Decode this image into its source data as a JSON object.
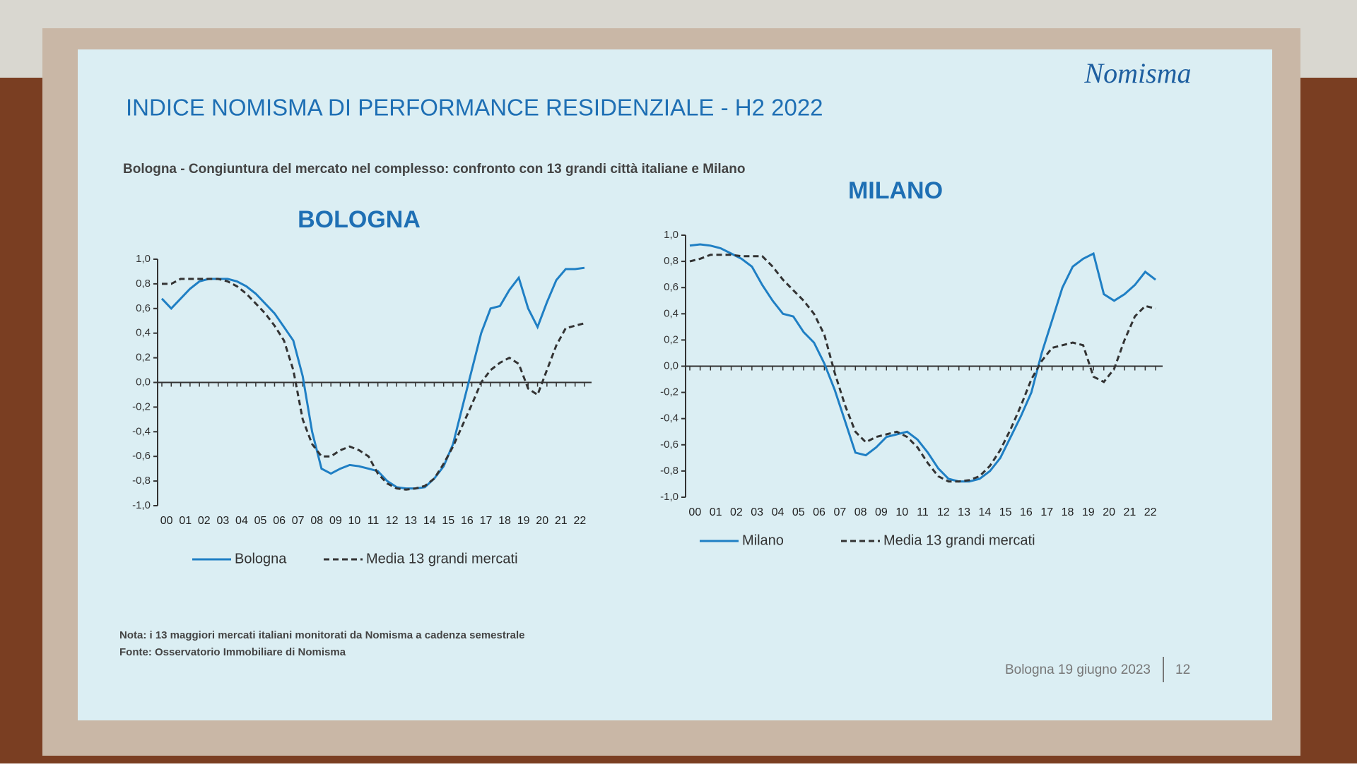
{
  "slide": {
    "title": "INDICE NOMISMA DI PERFORMANCE RESIDENZIALE - H2 2022",
    "subtitle": "Bologna - Congiuntura del mercato nel complesso: confronto con 13 grandi città italiane e Milano",
    "logo": "Nomisma",
    "notes": [
      "Nota: i 13 maggiori mercati italiani monitorati da Nomisma a cadenza semestrale",
      "Fonte: Osservatorio Immobiliare di Nomisma"
    ],
    "footer": {
      "date": "Bologna 19 giugno 2023",
      "page": "12"
    }
  },
  "chart_data": [
    {
      "type": "line",
      "title": "BOLOGNA",
      "categories": [
        "00",
        null,
        "01",
        null,
        "02",
        null,
        "03",
        null,
        "04",
        null,
        "05",
        null,
        "06",
        null,
        "07",
        null,
        "08",
        null,
        "09",
        null,
        "10",
        null,
        "11",
        null,
        "12",
        null,
        "13",
        null,
        "14",
        null,
        "15",
        null,
        "16",
        null,
        "17",
        null,
        "18",
        null,
        "19",
        null,
        "20",
        null,
        "21",
        null,
        "22",
        null
      ],
      "ylim": [
        -1,
        1
      ],
      "yticks": [
        {
          "value": -1,
          "label": "-1,0"
        },
        {
          "value": -0.8,
          "label": "-0,8"
        },
        {
          "value": -0.6,
          "label": "-0,6"
        },
        {
          "value": -0.4,
          "label": "-0,4"
        },
        {
          "value": -0.2,
          "label": "-0,2"
        },
        {
          "value": 0,
          "label": "0,0"
        },
        {
          "value": 0.2,
          "label": "0,2"
        },
        {
          "value": 0.4,
          "label": "0,4"
        },
        {
          "value": 0.6,
          "label": "0,6"
        },
        {
          "value": 0.8,
          "label": "0,8"
        },
        {
          "value": 1,
          "label": "1,0"
        }
      ],
      "series": [
        {
          "name": "Bologna",
          "color": "#1f7fc4",
          "line_style": "solid",
          "values": [
            0.68,
            0.6,
            0.68,
            0.76,
            0.82,
            0.84,
            0.84,
            0.84,
            0.82,
            0.78,
            0.72,
            0.64,
            0.56,
            0.45,
            0.34,
            0.05,
            -0.4,
            -0.7,
            -0.74,
            -0.7,
            -0.67,
            -0.68,
            -0.7,
            -0.72,
            -0.8,
            -0.85,
            -0.86,
            -0.86,
            -0.85,
            -0.78,
            -0.68,
            -0.5,
            -0.2,
            0.1,
            0.4,
            0.6,
            0.62,
            0.75,
            0.85,
            0.6,
            0.45,
            0.65,
            0.83,
            0.92,
            0.92,
            0.93
          ]
        },
        {
          "name": "Media 13 grandi mercati",
          "color": "#333333",
          "line_style": "dashed",
          "values": [
            0.8,
            0.8,
            0.84,
            0.84,
            0.84,
            0.84,
            0.84,
            0.82,
            0.78,
            0.72,
            0.64,
            0.56,
            0.46,
            0.34,
            0.1,
            -0.3,
            -0.5,
            -0.6,
            -0.6,
            -0.55,
            -0.52,
            -0.55,
            -0.6,
            -0.74,
            -0.82,
            -0.86,
            -0.87,
            -0.86,
            -0.84,
            -0.78,
            -0.66,
            -0.52,
            -0.35,
            -0.18,
            0.0,
            0.1,
            0.16,
            0.2,
            0.15,
            -0.05,
            -0.1,
            0.1,
            0.3,
            0.44,
            0.46,
            0.48
          ]
        }
      ]
    },
    {
      "type": "line",
      "title": "MILANO",
      "categories": [
        "00",
        null,
        "01",
        null,
        "02",
        null,
        "03",
        null,
        "04",
        null,
        "05",
        null,
        "06",
        null,
        "07",
        null,
        "08",
        null,
        "09",
        null,
        "10",
        null,
        "11",
        null,
        "12",
        null,
        "13",
        null,
        "14",
        null,
        "15",
        null,
        "16",
        null,
        "17",
        null,
        "18",
        null,
        "19",
        null,
        "20",
        null,
        "21",
        null,
        "22",
        null
      ],
      "ylim": [
        -1,
        1
      ],
      "yticks": [
        {
          "value": -1,
          "label": "-1,0"
        },
        {
          "value": -0.8,
          "label": "-0,8"
        },
        {
          "value": -0.6,
          "label": "-0,6"
        },
        {
          "value": -0.4,
          "label": "-0,4"
        },
        {
          "value": -0.2,
          "label": "-0,2"
        },
        {
          "value": 0,
          "label": "0,0"
        },
        {
          "value": 0.2,
          "label": "0,2"
        },
        {
          "value": 0.4,
          "label": "0,4"
        },
        {
          "value": 0.6,
          "label": "0,6"
        },
        {
          "value": 0.8,
          "label": "0,8"
        },
        {
          "value": 1,
          "label": "1,0"
        }
      ],
      "series": [
        {
          "name": "Milano",
          "color": "#1f7fc4",
          "line_style": "solid",
          "values": [
            0.92,
            0.93,
            0.92,
            0.9,
            0.86,
            0.82,
            0.76,
            0.62,
            0.5,
            0.4,
            0.38,
            0.26,
            0.18,
            0.02,
            -0.18,
            -0.42,
            -0.66,
            -0.68,
            -0.62,
            -0.54,
            -0.52,
            -0.5,
            -0.56,
            -0.66,
            -0.78,
            -0.86,
            -0.88,
            -0.88,
            -0.86,
            -0.8,
            -0.7,
            -0.54,
            -0.38,
            -0.2,
            0.1,
            0.35,
            0.6,
            0.76,
            0.82,
            0.86,
            0.55,
            0.5,
            0.55,
            0.62,
            0.72,
            0.66
          ]
        },
        {
          "name": "Media 13 grandi mercati",
          "color": "#333333",
          "line_style": "dashed",
          "values": [
            0.8,
            0.82,
            0.85,
            0.85,
            0.85,
            0.84,
            0.84,
            0.84,
            0.76,
            0.66,
            0.58,
            0.5,
            0.4,
            0.24,
            -0.05,
            -0.3,
            -0.5,
            -0.58,
            -0.54,
            -0.52,
            -0.5,
            -0.54,
            -0.62,
            -0.74,
            -0.84,
            -0.88,
            -0.88,
            -0.87,
            -0.84,
            -0.76,
            -0.64,
            -0.48,
            -0.3,
            -0.1,
            0.04,
            0.14,
            0.16,
            0.18,
            0.16,
            -0.08,
            -0.12,
            -0.02,
            0.2,
            0.38,
            0.46,
            0.44
          ]
        }
      ]
    }
  ]
}
